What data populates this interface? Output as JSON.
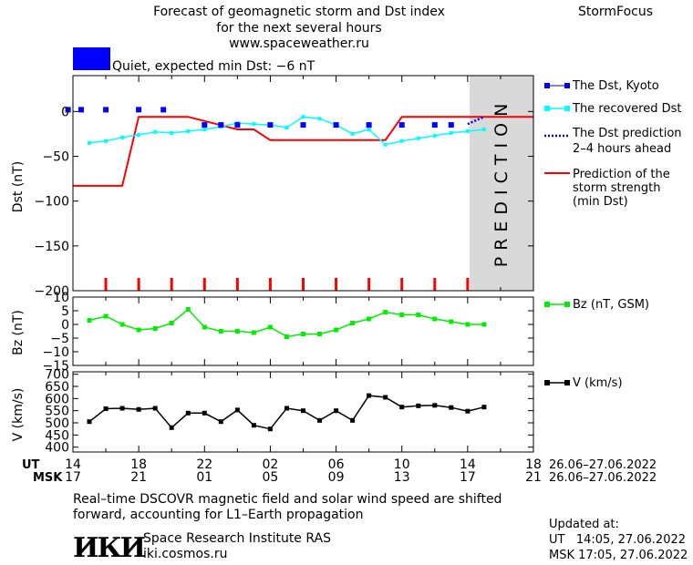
{
  "header": {
    "title_line1": "Forecast of geomagnetic storm and Dst index",
    "title_line2": "for the next several hours",
    "url": "www.spaceweather.ru",
    "brand": "StormFocus",
    "status_color": "#0000ff",
    "status_text": "Quiet, expected min Dst: −6 nT"
  },
  "legend": {
    "dst_kyoto": "The Dst, Kyoto",
    "dst_recovered": "The recovered Dst",
    "dst_prediction_1": "The Dst prediction",
    "dst_prediction_2": "2–4 hours ahead",
    "storm_1": "Prediction of the",
    "storm_2": "storm strength",
    "storm_3": "(min Dst)",
    "bz": "Bz (nT, GSM)",
    "v": "V (km/s)"
  },
  "prediction_label": "PREDICTION",
  "axes": {
    "ut_label": "UT",
    "msk_label": "MSK",
    "ut_ticks": [
      "14",
      "18",
      "22",
      "02",
      "06",
      "10",
      "14",
      "18"
    ],
    "msk_ticks": [
      "17",
      "21",
      "01",
      "05",
      "09",
      "13",
      "17",
      "21"
    ],
    "ut_range": "26.06–27.06.2022",
    "msk_range": "26.06–27.06.2022"
  },
  "footer": {
    "note_line1": "Real–time DSCOVR magnetic field and solar wind speed are shifted",
    "note_line2": "forward, accounting for L1–Earth propagation",
    "logo_text": "ИКИ",
    "institute": "Space Research Institute RAS",
    "site": "iki.cosmos.ru",
    "updated_label": "Updated at:",
    "updated_ut": "UT   14:05, 27.06.2022",
    "updated_msk": "MSK 17:05, 27.06.2022"
  },
  "chart_data": [
    {
      "type": "line",
      "ylabel": "Dst (nT)",
      "ylim": [
        -200,
        40
      ],
      "yticks": [
        0,
        -50,
        -100,
        -150,
        -200
      ],
      "xlim_hours": [
        0,
        28
      ],
      "prediction_start_hour": 24,
      "colors": {
        "kyoto": "#0000ff",
        "recovered": "#00ffff",
        "storm": "#ff0000",
        "prediction": "#0000ff"
      },
      "series": [
        {
          "name": "The Dst, Kyoto",
          "style": "points",
          "x": [
            -0.3,
            0.5,
            2,
            4,
            5.5,
            8,
            9,
            10,
            12,
            14,
            16,
            18,
            20,
            22,
            23
          ],
          "values": [
            2,
            2,
            2,
            2,
            2,
            -15,
            -15,
            -15,
            -15,
            -15,
            -15,
            -15,
            -15,
            -15,
            -15
          ]
        },
        {
          "name": "The recovered Dst",
          "style": "line",
          "x": [
            1,
            2,
            3,
            4,
            5,
            6,
            7,
            8,
            9,
            10,
            11,
            12,
            13,
            14,
            15,
            16,
            17,
            18,
            19,
            20,
            21,
            22,
            23,
            24,
            25
          ],
          "values": [
            -35,
            -33,
            -29,
            -26,
            -23,
            -24,
            -22,
            -20,
            -17,
            -13,
            -14,
            -15,
            -18,
            -6,
            -8,
            -15,
            -25,
            -20,
            -37,
            -33,
            -30,
            -27,
            -24,
            -22,
            -20
          ]
        },
        {
          "name": "Prediction of the storm strength (min Dst)",
          "style": "step",
          "x": [
            0,
            3,
            4,
            7,
            10,
            11,
            12,
            19,
            20,
            28
          ],
          "values": [
            -83,
            -83,
            -6,
            -6,
            -20,
            -20,
            -32,
            -32,
            -6,
            -6
          ]
        },
        {
          "name": "The Dst prediction 2–4 hours ahead",
          "style": "dotted",
          "x": [
            24,
            25
          ],
          "values": [
            -14,
            -6
          ]
        }
      ],
      "storm_markers_hours": [
        2,
        4,
        6,
        8,
        10,
        12,
        14,
        16,
        18,
        20,
        22,
        24
      ]
    },
    {
      "type": "line",
      "ylabel": "Bz (nT)",
      "ylim": [
        -15,
        10
      ],
      "yticks": [
        10,
        5,
        0,
        -5,
        -10,
        -15
      ],
      "series": [
        {
          "name": "Bz (nT, GSM)",
          "color": "#00ee00",
          "x": [
            1,
            2,
            3,
            4,
            5,
            6,
            7,
            8,
            9,
            10,
            11,
            12,
            13,
            14,
            15,
            16,
            17,
            18,
            19,
            20,
            21,
            22,
            23,
            24,
            25
          ],
          "values": [
            1.5,
            3,
            0,
            -2,
            -1.5,
            0.5,
            5.5,
            -1,
            -2.5,
            -2.5,
            -3,
            -1,
            -4.5,
            -3.5,
            -3.5,
            -2,
            0.5,
            2,
            4.5,
            3.5,
            3.5,
            2,
            1,
            0,
            0
          ]
        }
      ]
    },
    {
      "type": "line",
      "ylabel": "V (km/s)",
      "ylim": [
        380,
        710
      ],
      "yticks": [
        700,
        650,
        600,
        550,
        500,
        450,
        400
      ],
      "series": [
        {
          "name": "V (km/s)",
          "color": "#000000",
          "x": [
            1,
            2,
            3,
            4,
            5,
            6,
            7,
            8,
            9,
            10,
            11,
            12,
            13,
            14,
            15,
            16,
            17,
            18,
            19,
            20,
            21,
            22,
            23,
            24,
            25
          ],
          "values": [
            505,
            558,
            560,
            555,
            560,
            480,
            540,
            540,
            505,
            553,
            490,
            475,
            560,
            550,
            510,
            550,
            510,
            612,
            605,
            565,
            570,
            572,
            563,
            548,
            565
          ]
        }
      ]
    }
  ]
}
